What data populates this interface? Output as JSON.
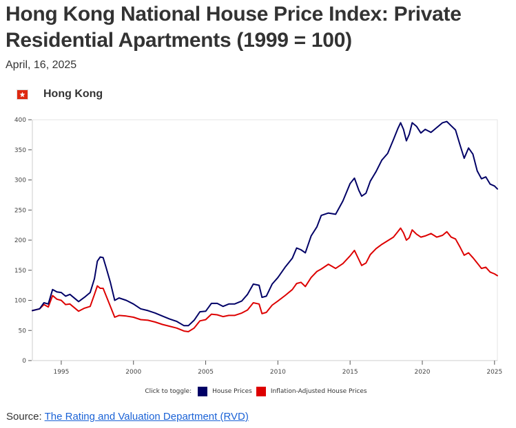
{
  "header": {
    "title": "Hong Kong National House Price Index: Private Residential Apartments (1999 = 100)",
    "date": "April, 16, 2025"
  },
  "region": {
    "name": "Hong Kong",
    "flag_icon": "hong-kong-flag-icon"
  },
  "legend": {
    "toggle_label": "Click to toggle:",
    "items": [
      {
        "label": "House Prices",
        "color": "#000066"
      },
      {
        "label": "Inflation-Adjusted House Prices",
        "color": "#dd0000"
      }
    ]
  },
  "source": {
    "prefix": "Source: ",
    "link_text": "The Rating and Valuation Department (RVD)"
  },
  "chart_data": {
    "type": "line",
    "title": "Hong Kong National House Price Index: Private Residential Apartments (1999 = 100)",
    "xlabel": "",
    "ylabel": "",
    "xlim": [
      1993.0,
      2025.2
    ],
    "ylim": [
      0,
      400
    ],
    "x_ticks": [
      1995,
      2000,
      2005,
      2010,
      2015,
      2020,
      2025
    ],
    "y_ticks": [
      0,
      50,
      100,
      150,
      200,
      250,
      300,
      350,
      400
    ],
    "grid": false,
    "legend_position": "bottom-center",
    "x": [
      1993.0,
      1993.5,
      1993.8,
      1994.1,
      1994.4,
      1994.7,
      1995.0,
      1995.3,
      1995.6,
      1996.2,
      1996.6,
      1997.0,
      1997.3,
      1997.5,
      1997.7,
      1997.9,
      1998.1,
      1998.4,
      1998.7,
      1999.0,
      1999.5,
      2000.0,
      2000.5,
      2001.0,
      2001.5,
      2002.0,
      2002.5,
      2003.0,
      2003.5,
      2003.8,
      2004.2,
      2004.6,
      2005.0,
      2005.4,
      2005.8,
      2006.2,
      2006.6,
      2007.0,
      2007.5,
      2007.9,
      2008.3,
      2008.7,
      2008.9,
      2009.2,
      2009.6,
      2010.0,
      2010.5,
      2011.0,
      2011.3,
      2011.6,
      2011.9,
      2012.3,
      2012.7,
      2013.0,
      2013.5,
      2014.0,
      2014.5,
      2015.0,
      2015.3,
      2015.6,
      2015.8,
      2016.1,
      2016.4,
      2016.8,
      2017.2,
      2017.6,
      2018.0,
      2018.3,
      2018.5,
      2018.7,
      2018.9,
      2019.1,
      2019.3,
      2019.6,
      2019.9,
      2020.2,
      2020.6,
      2021.0,
      2021.4,
      2021.7,
      2022.0,
      2022.3,
      2022.6,
      2022.9,
      2023.2,
      2023.5,
      2023.8,
      2024.1,
      2024.4,
      2024.7,
      2025.0,
      2025.2
    ],
    "series": [
      {
        "name": "House Prices",
        "color": "#000066",
        "values": [
          83,
          86,
          96,
          94,
          118,
          114,
          113,
          107,
          110,
          98,
          105,
          113,
          136,
          165,
          172,
          171,
          155,
          130,
          100,
          104,
          100,
          94,
          86,
          83,
          79,
          74,
          69,
          65,
          58,
          58,
          67,
          81,
          82,
          95,
          95,
          90,
          94,
          94,
          99,
          110,
          127,
          125,
          105,
          107,
          127,
          138,
          155,
          170,
          187,
          184,
          179,
          207,
          222,
          241,
          245,
          243,
          265,
          294,
          303,
          283,
          273,
          278,
          298,
          314,
          333,
          344,
          367,
          385,
          395,
          384,
          365,
          376,
          395,
          389,
          378,
          384,
          379,
          387,
          395,
          397,
          390,
          383,
          359,
          336,
          353,
          343,
          315,
          302,
          305,
          293,
          290,
          285
        ]
      },
      {
        "name": "Inflation-Adjusted House Prices",
        "color": "#dd0000",
        "values": [
          83,
          86,
          93,
          89,
          108,
          102,
          100,
          93,
          94,
          82,
          87,
          90,
          110,
          124,
          120,
          120,
          108,
          90,
          72,
          75,
          74,
          72,
          68,
          67,
          64,
          60,
          57,
          54,
          49,
          48,
          54,
          66,
          68,
          77,
          76,
          73,
          75,
          75,
          79,
          84,
          96,
          94,
          78,
          80,
          92,
          99,
          108,
          118,
          128,
          130,
          123,
          138,
          148,
          152,
          160,
          153,
          161,
          174,
          183,
          168,
          158,
          162,
          176,
          186,
          193,
          199,
          205,
          214,
          220,
          212,
          200,
          204,
          217,
          210,
          205,
          207,
          211,
          205,
          208,
          214,
          205,
          202,
          189,
          175,
          179,
          171,
          162,
          153,
          155,
          147,
          144,
          141
        ]
      }
    ]
  }
}
